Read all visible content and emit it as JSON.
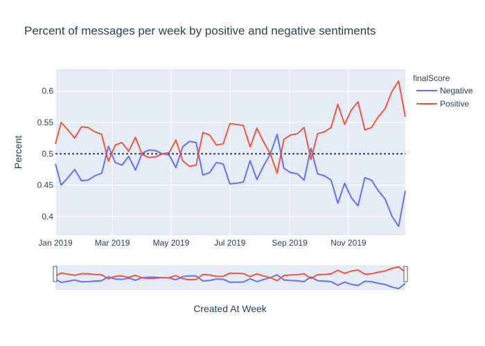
{
  "chart_data": {
    "type": "line",
    "title": "Percent of messages per week by positive and negative sentiments",
    "xlabel": "Created At Week",
    "ylabel": "Percent",
    "x_start": "2019-01-01",
    "x_end": "2019-12-30",
    "xtick_labels": [
      "Jan 2019",
      "Mar 2019",
      "May 2019",
      "Jul 2019",
      "Sep 2019",
      "Nov 2019"
    ],
    "xtick_dates": [
      "2019-01-01",
      "2019-03-01",
      "2019-05-01",
      "2019-07-01",
      "2019-09-01",
      "2019-11-01"
    ],
    "ylim": [
      0.37,
      0.635
    ],
    "yticks": [
      0.4,
      0.45,
      0.5,
      0.55,
      0.6
    ],
    "ytick_labels": [
      "0.4",
      "0.45",
      "0.5",
      "0.55",
      "0.6"
    ],
    "reference_line": 0.5,
    "grid": true,
    "legend": {
      "title": "finalScore",
      "position": "right"
    },
    "range_slider": true,
    "x": [
      "2019-01-01",
      "2019-01-07",
      "2019-01-14",
      "2019-01-21",
      "2019-01-28",
      "2019-02-04",
      "2019-02-11",
      "2019-02-18",
      "2019-02-25",
      "2019-03-04",
      "2019-03-11",
      "2019-03-18",
      "2019-03-25",
      "2019-04-01",
      "2019-04-08",
      "2019-04-15",
      "2019-04-22",
      "2019-04-29",
      "2019-05-06",
      "2019-05-13",
      "2019-05-20",
      "2019-05-27",
      "2019-06-03",
      "2019-06-10",
      "2019-06-17",
      "2019-06-24",
      "2019-07-01",
      "2019-07-08",
      "2019-07-15",
      "2019-07-22",
      "2019-07-29",
      "2019-08-05",
      "2019-08-12",
      "2019-08-19",
      "2019-08-26",
      "2019-09-02",
      "2019-09-09",
      "2019-09-16",
      "2019-09-23",
      "2019-09-30",
      "2019-10-07",
      "2019-10-14",
      "2019-10-21",
      "2019-10-28",
      "2019-11-04",
      "2019-11-11",
      "2019-11-18",
      "2019-11-25",
      "2019-12-02",
      "2019-12-09",
      "2019-12-16",
      "2019-12-23",
      "2019-12-30"
    ],
    "series": [
      {
        "name": "Negative",
        "color": "#636efa",
        "values": [
          0.484,
          0.45,
          0.462,
          0.475,
          0.457,
          0.458,
          0.465,
          0.469,
          0.512,
          0.486,
          0.482,
          0.496,
          0.474,
          0.501,
          0.506,
          0.505,
          0.5,
          0.498,
          0.478,
          0.511,
          0.52,
          0.518,
          0.466,
          0.47,
          0.486,
          0.484,
          0.452,
          0.453,
          0.455,
          0.489,
          0.459,
          0.481,
          0.5,
          0.531,
          0.477,
          0.47,
          0.468,
          0.458,
          0.509,
          0.468,
          0.465,
          0.458,
          0.421,
          0.453,
          0.43,
          0.417,
          0.462,
          0.458,
          0.441,
          0.428,
          0.401,
          0.384,
          0.441
        ]
      },
      {
        "name": "Positive",
        "color": "#ef553b",
        "values": [
          0.516,
          0.55,
          0.538,
          0.525,
          0.543,
          0.542,
          0.535,
          0.531,
          0.488,
          0.514,
          0.518,
          0.504,
          0.526,
          0.499,
          0.494,
          0.495,
          0.5,
          0.502,
          0.522,
          0.489,
          0.48,
          0.482,
          0.534,
          0.53,
          0.514,
          0.516,
          0.548,
          0.547,
          0.545,
          0.511,
          0.541,
          0.519,
          0.5,
          0.469,
          0.523,
          0.53,
          0.532,
          0.542,
          0.491,
          0.532,
          0.535,
          0.542,
          0.579,
          0.547,
          0.57,
          0.583,
          0.538,
          0.542,
          0.559,
          0.572,
          0.599,
          0.616,
          0.559
        ]
      }
    ]
  }
}
